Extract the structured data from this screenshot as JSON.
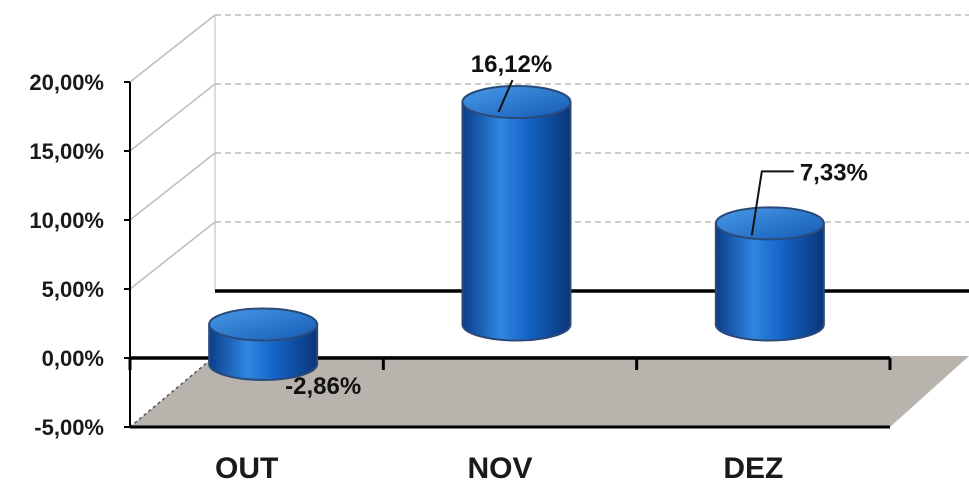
{
  "chart_data": {
    "type": "bar",
    "style": "3d-cylinder",
    "categories": [
      "OUT",
      "NOV",
      "DEZ"
    ],
    "values": [
      -2.86,
      16.12,
      7.33
    ],
    "data_labels": [
      "-2,86%",
      "16,12%",
      "7,33%"
    ],
    "ylim": [
      -5,
      20
    ],
    "yticks": [
      -5,
      0,
      5,
      10,
      15,
      20
    ],
    "ytick_labels": [
      "-5,00%",
      "0,00%",
      "5,00%",
      "10,00%",
      "15,00%",
      "20,00%"
    ],
    "title": "",
    "xlabel": "",
    "ylabel": "",
    "grid": true,
    "legend": "none",
    "colors": {
      "bar": "#1565c8",
      "bar_light": "#4a9ae8",
      "bar_dark": "#0b3d8a",
      "floor": "#b8b4ad",
      "gridline": "#bdbdbd",
      "axis": "#000000"
    }
  }
}
